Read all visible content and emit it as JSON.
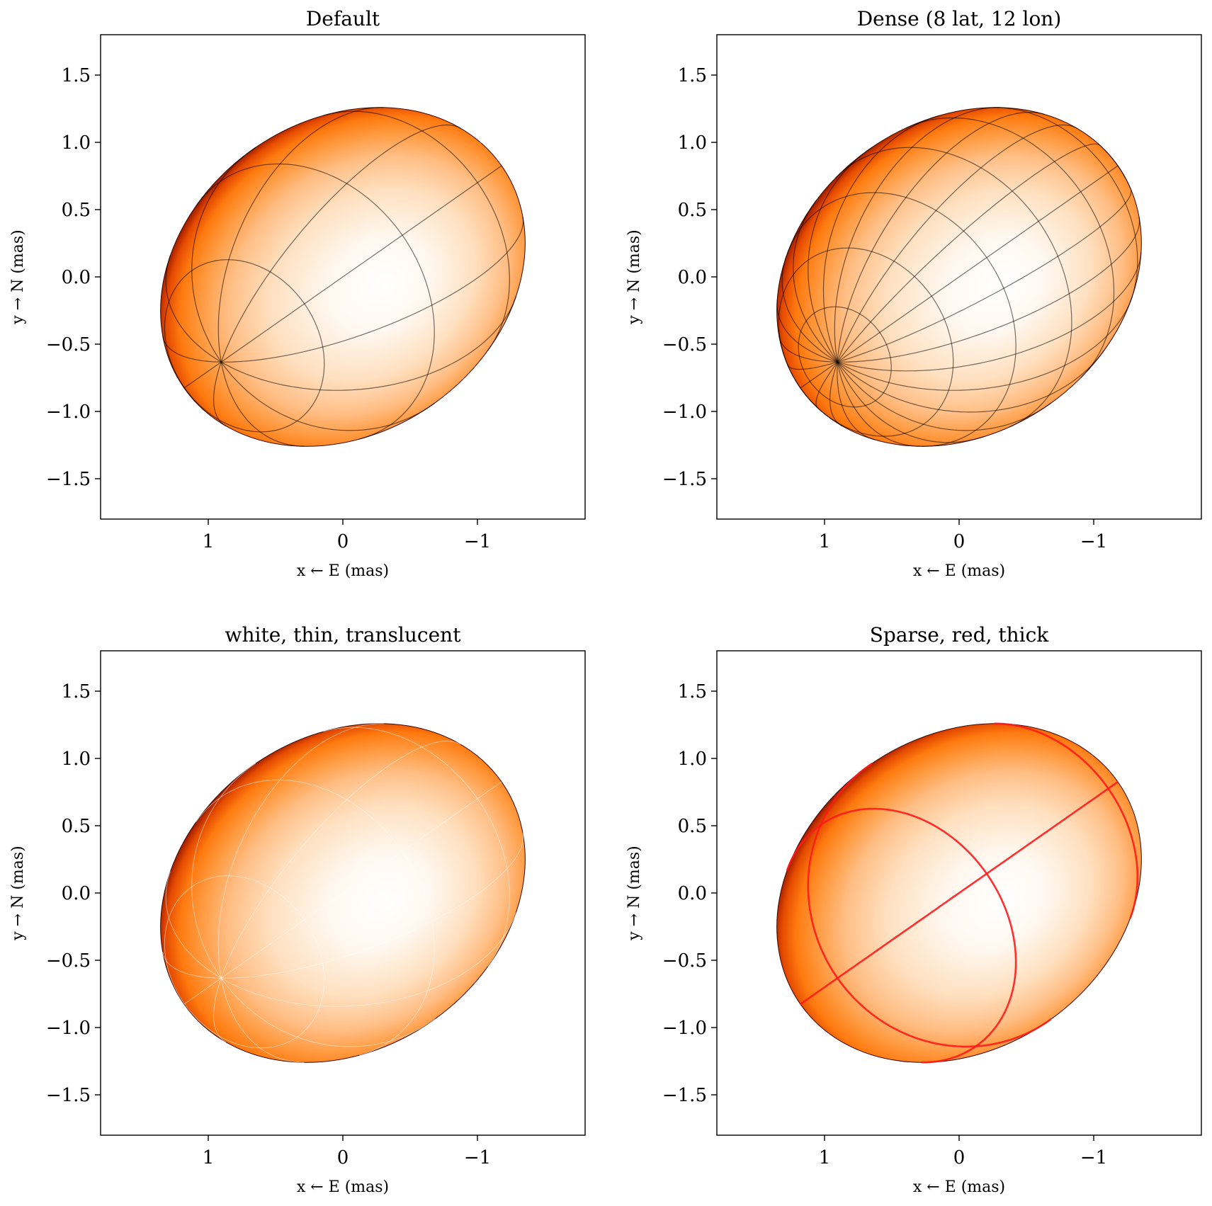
{
  "chart_data": [
    {
      "type": "other",
      "title": "Default",
      "xlabel": "x ← E (mas)",
      "ylabel": "y → N (mas)",
      "xlim": [
        1.8,
        -1.8
      ],
      "ylim": [
        -1.8,
        1.8
      ],
      "xticks": [
        1,
        0,
        -1
      ],
      "xtick_labels": [
        "1",
        "0",
        "−1"
      ],
      "yticks": [
        1.5,
        1.0,
        0.5,
        0.0,
        -0.5,
        -1.0,
        -1.5
      ],
      "ytick_labels": [
        "1.5",
        "1.0",
        "0.5",
        "0.0",
        "−0.5",
        "−1.0",
        "−1.5"
      ],
      "star": {
        "a": 1.44,
        "b": 1.16,
        "center": [
          0.0,
          0.0
        ],
        "position_angle_deg": 55
      },
      "grid": {
        "n_lat": 4,
        "n_lon": 6,
        "color": "#000000",
        "alpha": 0.55,
        "width": 1.2
      }
    },
    {
      "type": "other",
      "title": "Dense (8 lat, 12 lon)",
      "xlabel": "x ← E (mas)",
      "ylabel": "y → N (mas)",
      "xlim": [
        1.8,
        -1.8
      ],
      "ylim": [
        -1.8,
        1.8
      ],
      "xticks": [
        1,
        0,
        -1
      ],
      "xtick_labels": [
        "1",
        "0",
        "−1"
      ],
      "yticks": [
        1.5,
        1.0,
        0.5,
        0.0,
        -0.5,
        -1.0,
        -1.5
      ],
      "ytick_labels": [
        "1.5",
        "1.0",
        "0.5",
        "0.0",
        "−0.5",
        "−1.0",
        "−1.5"
      ],
      "star": {
        "a": 1.44,
        "b": 1.16,
        "center": [
          0.0,
          0.0
        ],
        "position_angle_deg": 55
      },
      "grid": {
        "n_lat": 8,
        "n_lon": 12,
        "color": "#000000",
        "alpha": 0.55,
        "width": 1.2
      }
    },
    {
      "type": "other",
      "title": "white, thin, translucent",
      "xlabel": "x ← E (mas)",
      "ylabel": "y → N (mas)",
      "xlim": [
        1.8,
        -1.8
      ],
      "ylim": [
        -1.8,
        1.8
      ],
      "xticks": [
        1,
        0,
        -1
      ],
      "xtick_labels": [
        "1",
        "0",
        "−1"
      ],
      "yticks": [
        1.5,
        1.0,
        0.5,
        0.0,
        -0.5,
        -1.0,
        -1.5
      ],
      "ytick_labels": [
        "1.5",
        "1.0",
        "0.5",
        "0.0",
        "−0.5",
        "−1.0",
        "−1.5"
      ],
      "star": {
        "a": 1.44,
        "b": 1.16,
        "center": [
          0.0,
          0.0
        ],
        "position_angle_deg": 55
      },
      "grid": {
        "n_lat": 4,
        "n_lon": 6,
        "color": "#ffffff",
        "alpha": 0.6,
        "width": 0.8
      }
    },
    {
      "type": "other",
      "title": "Sparse, red, thick",
      "xlabel": "x ← E (mas)",
      "ylabel": "y → N (mas)",
      "xlim": [
        1.8,
        -1.8
      ],
      "ylim": [
        -1.8,
        1.8
      ],
      "xticks": [
        1,
        0,
        -1
      ],
      "xtick_labels": [
        "1",
        "0",
        "−1"
      ],
      "yticks": [
        1.5,
        1.0,
        0.5,
        0.0,
        -0.5,
        -1.0,
        -1.5
      ],
      "ytick_labels": [
        "1.5",
        "1.0",
        "0.5",
        "0.0",
        "−0.5",
        "−1.0",
        "−1.5"
      ],
      "star": {
        "a": 1.44,
        "b": 1.16,
        "center": [
          0.0,
          0.0
        ],
        "position_angle_deg": 55
      },
      "grid": {
        "n_lat": 2,
        "n_lon": 2,
        "color": "#ff1a1a",
        "alpha": 0.9,
        "width": 2.6
      }
    }
  ]
}
